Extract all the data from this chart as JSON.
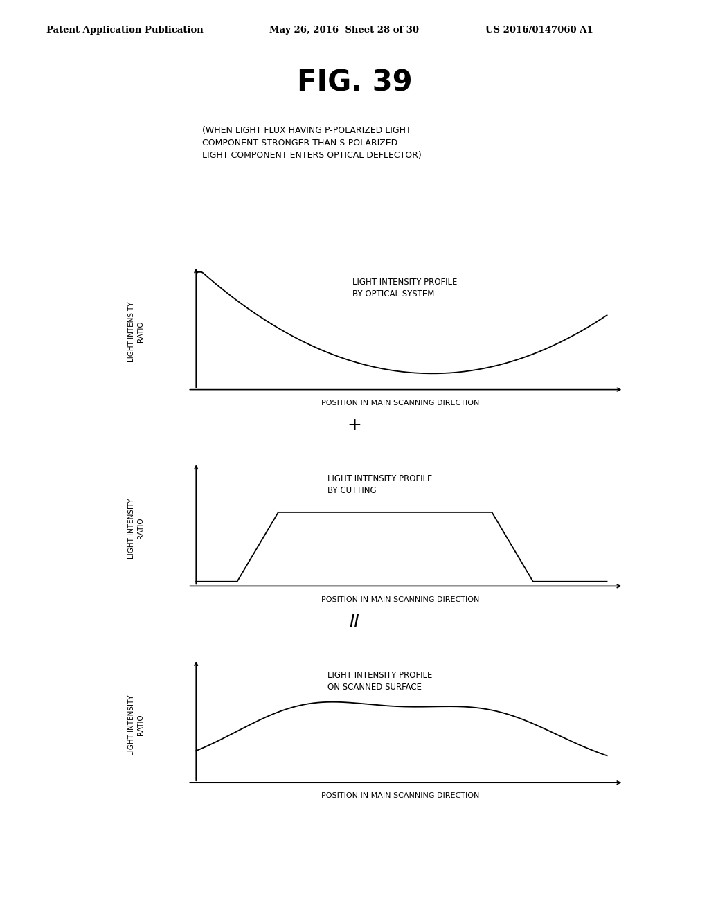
{
  "title": "FIG. 39",
  "header_left": "Patent Application Publication",
  "header_mid": "May 26, 2016  Sheet 28 of 30",
  "header_right": "US 2016/0147060 A1",
  "subtitle": "(WHEN LIGHT FLUX HAVING P-POLARIZED LIGHT\nCOMPONENT STRONGER THAN S-POLARIZED\nLIGHT COMPONENT ENTERS OPTICAL DEFLECTOR)",
  "graph1_label": "LIGHT INTENSITY PROFILE\nBY OPTICAL SYSTEM",
  "graph2_label": "LIGHT INTENSITY PROFILE\nBY CUTTING",
  "graph3_label": "LIGHT INTENSITY PROFILE\nON SCANNED SURFACE",
  "ylabel": "LIGHT INTENSITY\nRATIO",
  "xlabel": "POSITION IN MAIN SCANNING DIRECTION",
  "operator1": "+",
  "operator2": "II",
  "background_color": "#ffffff",
  "line_color": "#000000",
  "header_fontsize": 9.5,
  "title_fontsize": 30,
  "label_fontsize": 8.5,
  "ylabel_fontsize": 7.5,
  "xlabel_fontsize": 8.0,
  "subtitle_fontsize": 9.0,
  "operator_fontsize": 18
}
